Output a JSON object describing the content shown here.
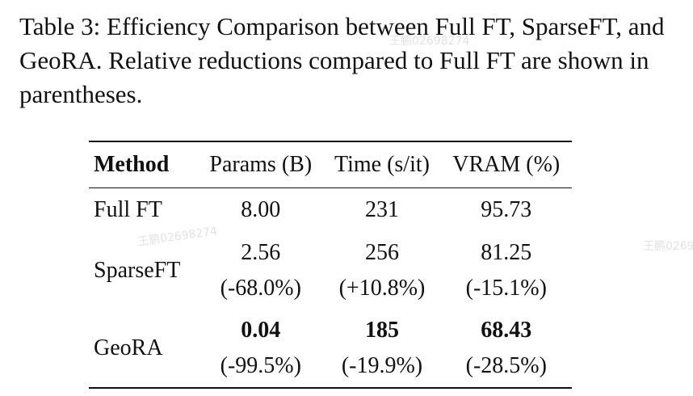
{
  "caption": "Table 3:  Efficiency Comparison between Full FT, SparseFT, and GeoRA. Relative reductions compared to Full FT are shown in parentheses.",
  "watermark": "王鹏02698274",
  "table": {
    "headers": {
      "method": "Method",
      "params": "Params (B)",
      "time": "Time (s/it)",
      "vram": "VRAM (%)"
    },
    "rows": [
      {
        "method": "Full FT",
        "params": "8.00",
        "time": "231",
        "vram": "95.73"
      },
      {
        "method": "SparseFT",
        "params": "2.56",
        "params_rel": "(-68.0%)",
        "time": "256",
        "time_rel": "(+10.8%)",
        "vram": "81.25",
        "vram_rel": "(-15.1%)"
      },
      {
        "method": "GeoRA",
        "params": "0.04",
        "params_rel": "(-99.5%)",
        "time": "185",
        "time_rel": "(-19.9%)",
        "vram": "68.43",
        "vram_rel": "(-28.5%)"
      }
    ]
  }
}
